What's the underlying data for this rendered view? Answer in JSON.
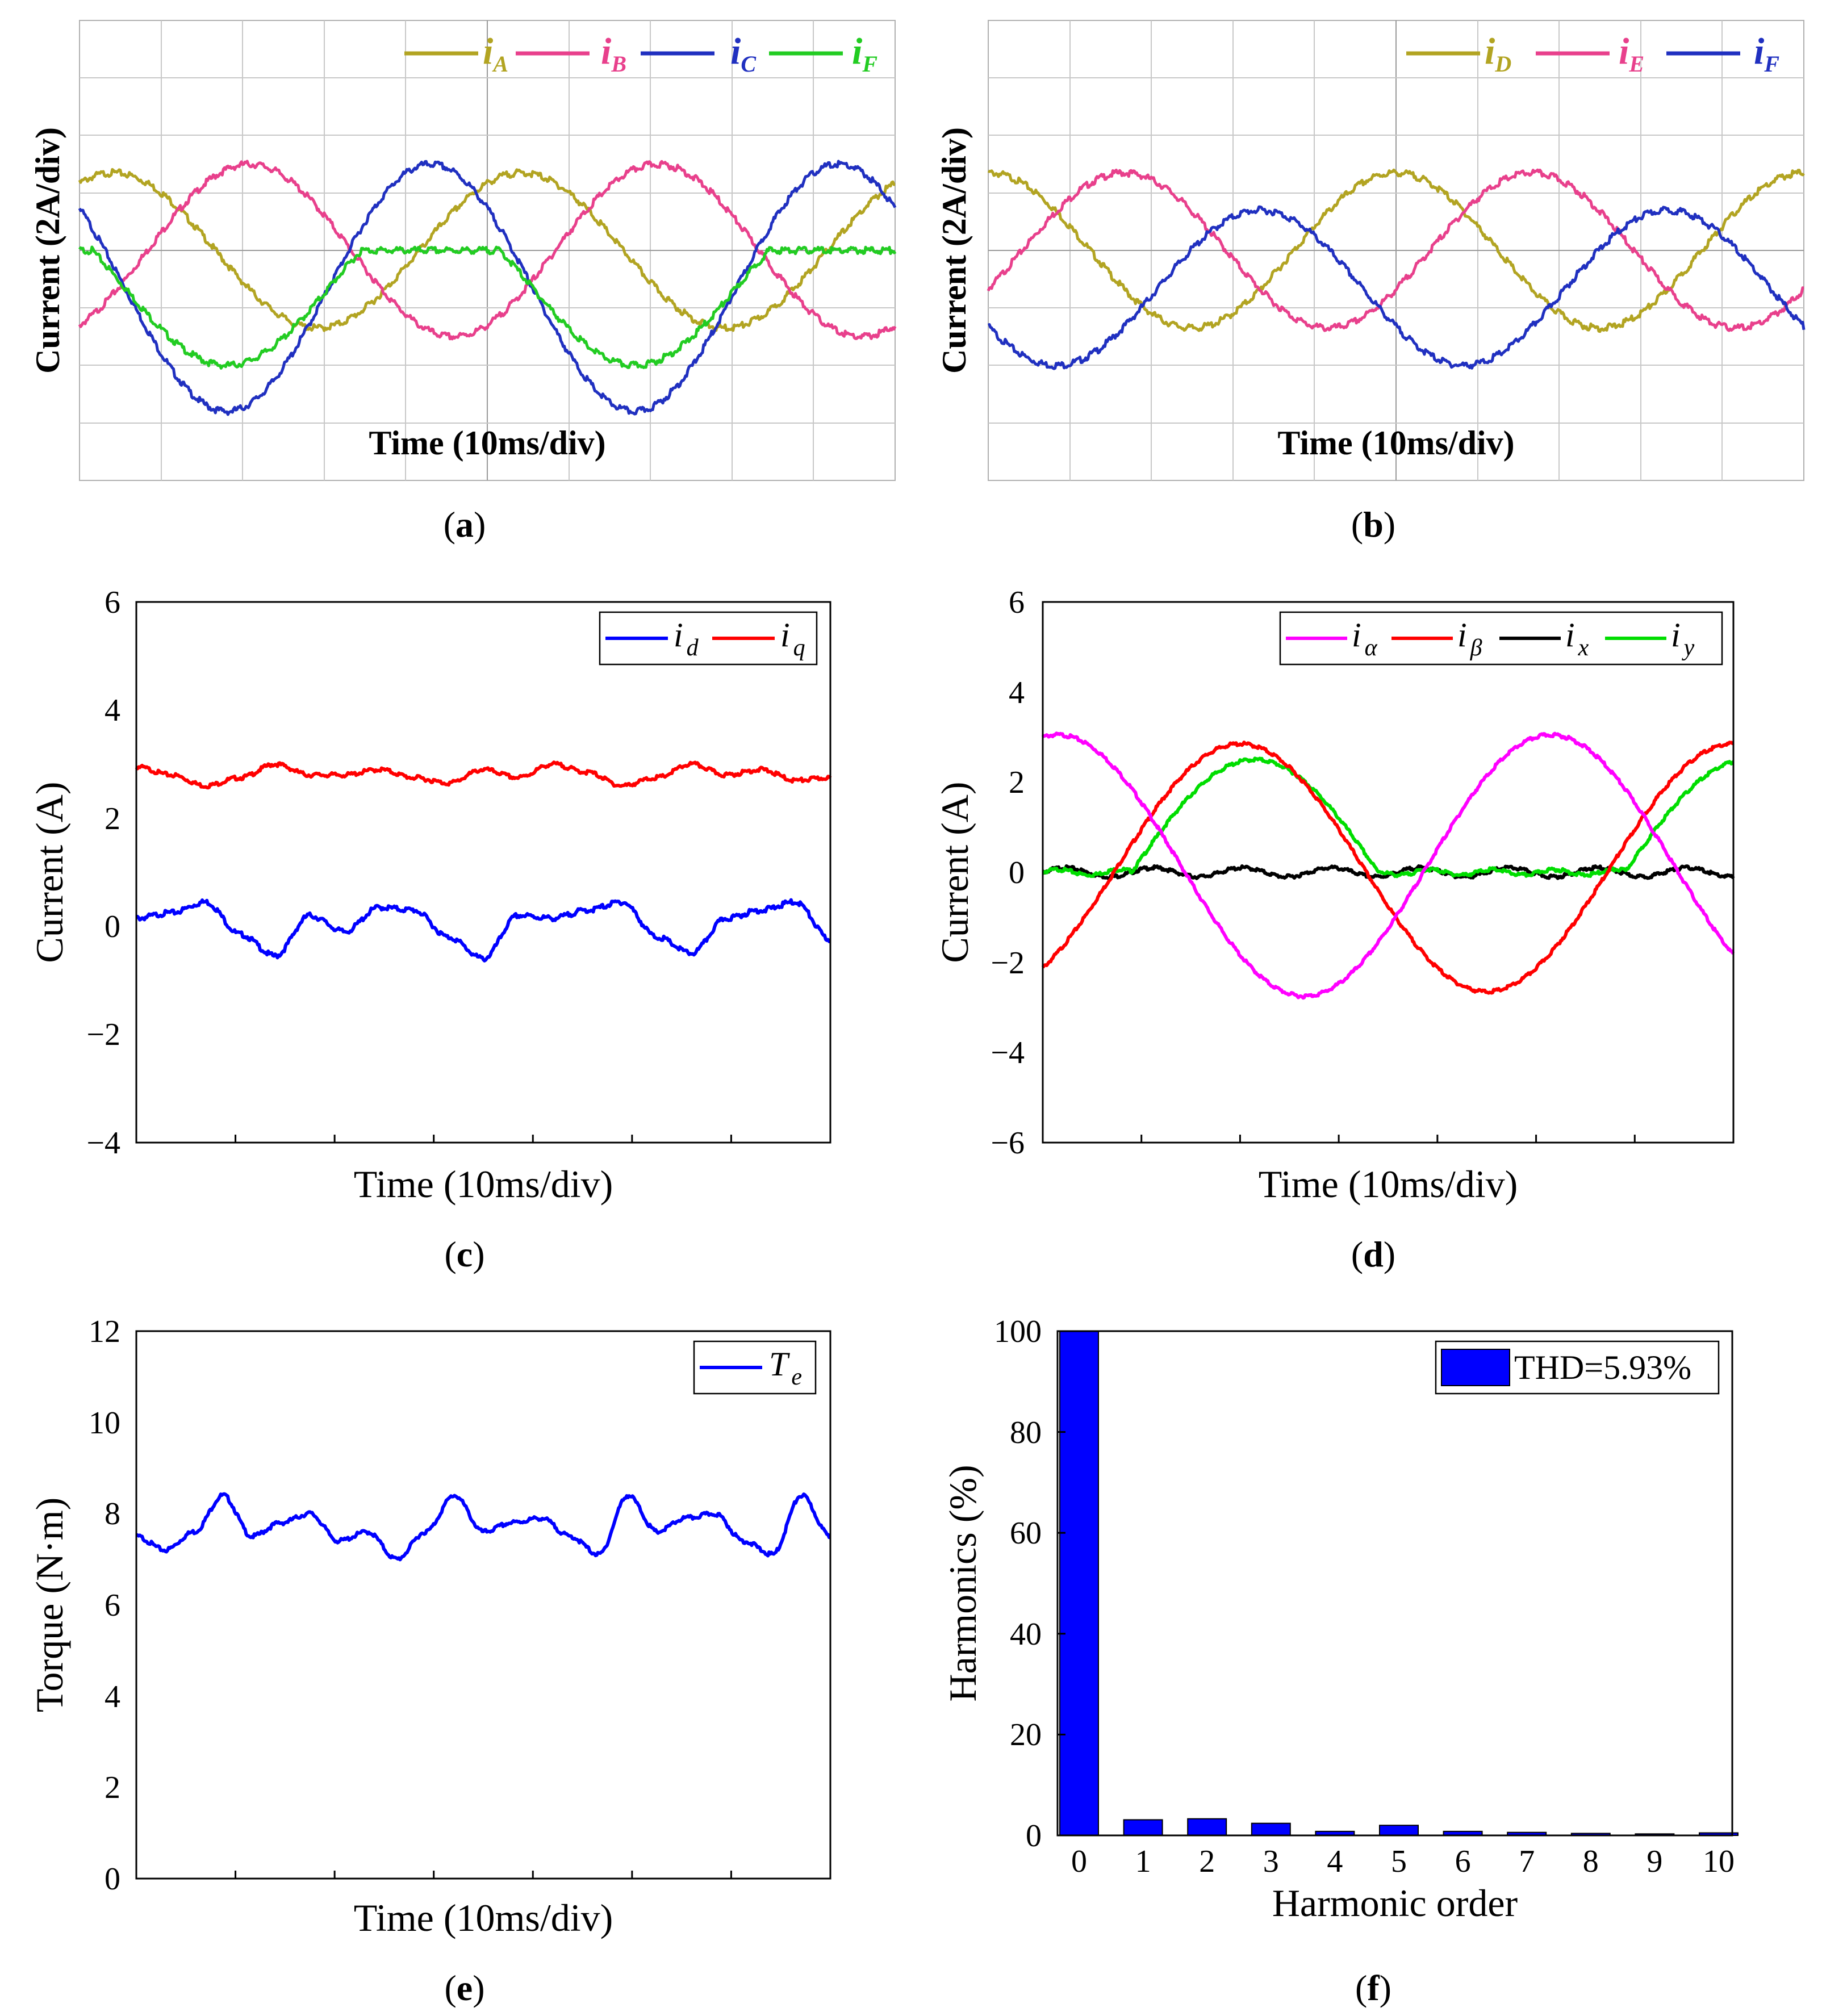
{
  "panels": {
    "a": {
      "caption": "(a)",
      "xlabel": "Time (10ms/div)",
      "ylabel": "Current (2A/div)",
      "legend": [
        {
          "main": "i",
          "sub": "A",
          "color": "#b2a422"
        },
        {
          "main": "i",
          "sub": "B",
          "color": "#e8408c"
        },
        {
          "main": "i",
          "sub": "C",
          "color": "#2030c0"
        },
        {
          "main": "i",
          "sub": "F",
          "color": "#22cc22"
        }
      ]
    },
    "b": {
      "caption": "(b)",
      "xlabel": "Time (10ms/div)",
      "ylabel": "Current (2A/div)",
      "legend": [
        {
          "main": "i",
          "sub": "D",
          "color": "#b2a422"
        },
        {
          "main": "i",
          "sub": "E",
          "color": "#e8408c"
        },
        {
          "main": "i",
          "sub": "F",
          "color": "#2030c0"
        }
      ]
    },
    "c": {
      "caption": "(c)",
      "xlabel": "Time (10ms/div)",
      "ylabel": "Current (A)",
      "yticks": [
        "6",
        "4",
        "2",
        "0",
        "−2",
        "−4"
      ],
      "legend": [
        {
          "main": "i",
          "sub": "d",
          "color": "#0000ff"
        },
        {
          "main": "i",
          "sub": "q",
          "color": "#ff0000"
        }
      ]
    },
    "d": {
      "caption": "(d)",
      "xlabel": "Time  (10ms/div)",
      "ylabel": "Current (A)",
      "yticks": [
        "6",
        "4",
        "2",
        "0",
        "−2",
        "−4",
        "−6"
      ],
      "legend": [
        {
          "main": "i",
          "sub": "α",
          "color": "#ff00ff"
        },
        {
          "main": "i",
          "sub": "β",
          "color": "#ff0000"
        },
        {
          "main": "i",
          "sub": "x",
          "color": "#000000"
        },
        {
          "main": "i",
          "sub": "y",
          "color": "#00dd00"
        }
      ]
    },
    "e": {
      "caption": "(e)",
      "xlabel": "Time (10ms/div)",
      "ylabel": "Torque (N·m)",
      "yticks": [
        "12",
        "10",
        "8",
        "6",
        "4",
        "2",
        "0"
      ],
      "legend": [
        {
          "main": "T",
          "sub": "e",
          "color": "#0000ff"
        }
      ]
    },
    "f": {
      "caption": "(f)",
      "xlabel": "Harmonic order",
      "ylabel": "Harmonics (%)",
      "yticks": [
        "100",
        "80",
        "60",
        "40",
        "20",
        "0"
      ],
      "xticks": [
        "0",
        "1",
        "2",
        "3",
        "4",
        "5",
        "6",
        "7",
        "8",
        "9",
        "10"
      ],
      "legend_label": "THD=5.93%",
      "bar_color": "#0000ff"
    }
  },
  "chart_data": [
    {
      "panel": "a",
      "type": "line",
      "title": "",
      "xlabel": "Time (10ms/div)",
      "ylabel": "Current (2A/div)",
      "frequency_hz": 20,
      "period_ms": 50,
      "duration_ms": 100,
      "series": [
        {
          "name": "iA",
          "shape": "sine",
          "amplitude_A": 2.7,
          "offset_A": 0,
          "phase_deg": 60
        },
        {
          "name": "iB",
          "shape": "sine",
          "amplitude_A": 3.0,
          "offset_A": 0,
          "phase_deg": 300
        },
        {
          "name": "iC",
          "shape": "sine",
          "amplitude_A": 4.3,
          "offset_A": -1.3,
          "phase_deg": 140
        },
        {
          "name": "iF",
          "shape": "clipped",
          "amplitude_A": 2.7,
          "offset_A": -1.3,
          "phase_deg": 140
        }
      ]
    },
    {
      "panel": "b",
      "type": "line",
      "title": "",
      "xlabel": "Time (10ms/div)",
      "ylabel": "Current (2A/div)",
      "frequency_hz": 20,
      "duration_ms": 100,
      "series": [
        {
          "name": "iD",
          "shape": "sine",
          "amplitude_A": 2.7,
          "offset_A": 0,
          "phase_deg": 90
        },
        {
          "name": "iE",
          "shape": "sine",
          "amplitude_A": 2.7,
          "offset_A": 0,
          "phase_deg": 330
        },
        {
          "name": "iF",
          "shape": "sine",
          "amplitude_A": 2.7,
          "offset_A": -1.3,
          "phase_deg": 210
        }
      ]
    },
    {
      "panel": "c",
      "type": "line",
      "title": "",
      "xlabel": "Time (10ms/div)",
      "ylabel": "Current (A)",
      "ylim": [
        -4,
        6
      ],
      "yticks": [
        -4,
        -2,
        0,
        2,
        4,
        6
      ],
      "series": [
        {
          "name": "id",
          "values": [
            0.15,
            0.25,
            0.45,
            -0.15,
            -0.55,
            0.2,
            -0.1,
            0.35,
            0.3,
            -0.2,
            -0.6,
            0.2,
            0.15,
            0.3,
            0.45,
            -0.2,
            -0.5,
            0.15,
            0.3,
            0.45,
            -0.25
          ]
        },
        {
          "name": "iq",
          "values": [
            2.95,
            2.8,
            2.6,
            2.75,
            3.0,
            2.8,
            2.8,
            2.9,
            2.75,
            2.65,
            2.9,
            2.75,
            3.0,
            2.85,
            2.6,
            2.75,
            3.0,
            2.8,
            2.9,
            2.7,
            2.75
          ]
        }
      ]
    },
    {
      "panel": "d",
      "type": "line",
      "title": "",
      "xlabel": "Time  (10ms/div)",
      "ylabel": "Current (A)",
      "ylim": [
        -6,
        6
      ],
      "yticks": [
        -6,
        -4,
        -2,
        0,
        2,
        4,
        6
      ],
      "frequency_hz": 20,
      "duration_ms": 70,
      "series": [
        {
          "name": "iα",
          "amplitude_A": 2.9,
          "offset_A": 0.15
        },
        {
          "name": "iβ",
          "amplitude_A": 2.75,
          "offset_A": 0.1
        },
        {
          "name": "ix",
          "amplitude_A": 0.1,
          "offset_A": 0.0
        },
        {
          "name": "iy",
          "amplitude_A": 2.5,
          "offset_A": 0.0,
          "shape": "half-wave"
        }
      ]
    },
    {
      "panel": "e",
      "type": "line",
      "title": "",
      "xlabel": "Time (10ms/div)",
      "ylabel": "Torque (N·m)",
      "ylim": [
        0,
        12
      ],
      "yticks": [
        0,
        2,
        4,
        6,
        8,
        10,
        12
      ],
      "series": [
        {
          "name": "Te",
          "values": [
            7.5,
            7.2,
            7.6,
            8.4,
            7.5,
            7.8,
            8.0,
            7.4,
            7.6,
            7.0,
            7.6,
            8.4,
            7.6,
            7.8,
            7.9,
            7.5,
            7.1,
            8.4,
            7.6,
            7.9,
            8.0,
            7.4,
            7.1,
            8.4,
            7.5
          ]
        }
      ]
    },
    {
      "panel": "f",
      "type": "bar",
      "title": "",
      "xlabel": "Harmonic order",
      "ylabel": "Harmonics (%)",
      "ylim": [
        0,
        100
      ],
      "yticks": [
        0,
        20,
        40,
        60,
        80,
        100
      ],
      "categories": [
        "0",
        "1",
        "2",
        "3",
        "4",
        "5",
        "6",
        "7",
        "8",
        "9",
        "10"
      ],
      "values": [
        100,
        3.1,
        3.3,
        2.4,
        0.8,
        2.0,
        0.8,
        0.6,
        0.4,
        0.3,
        0.5
      ],
      "legend": "THD=5.93%"
    }
  ]
}
